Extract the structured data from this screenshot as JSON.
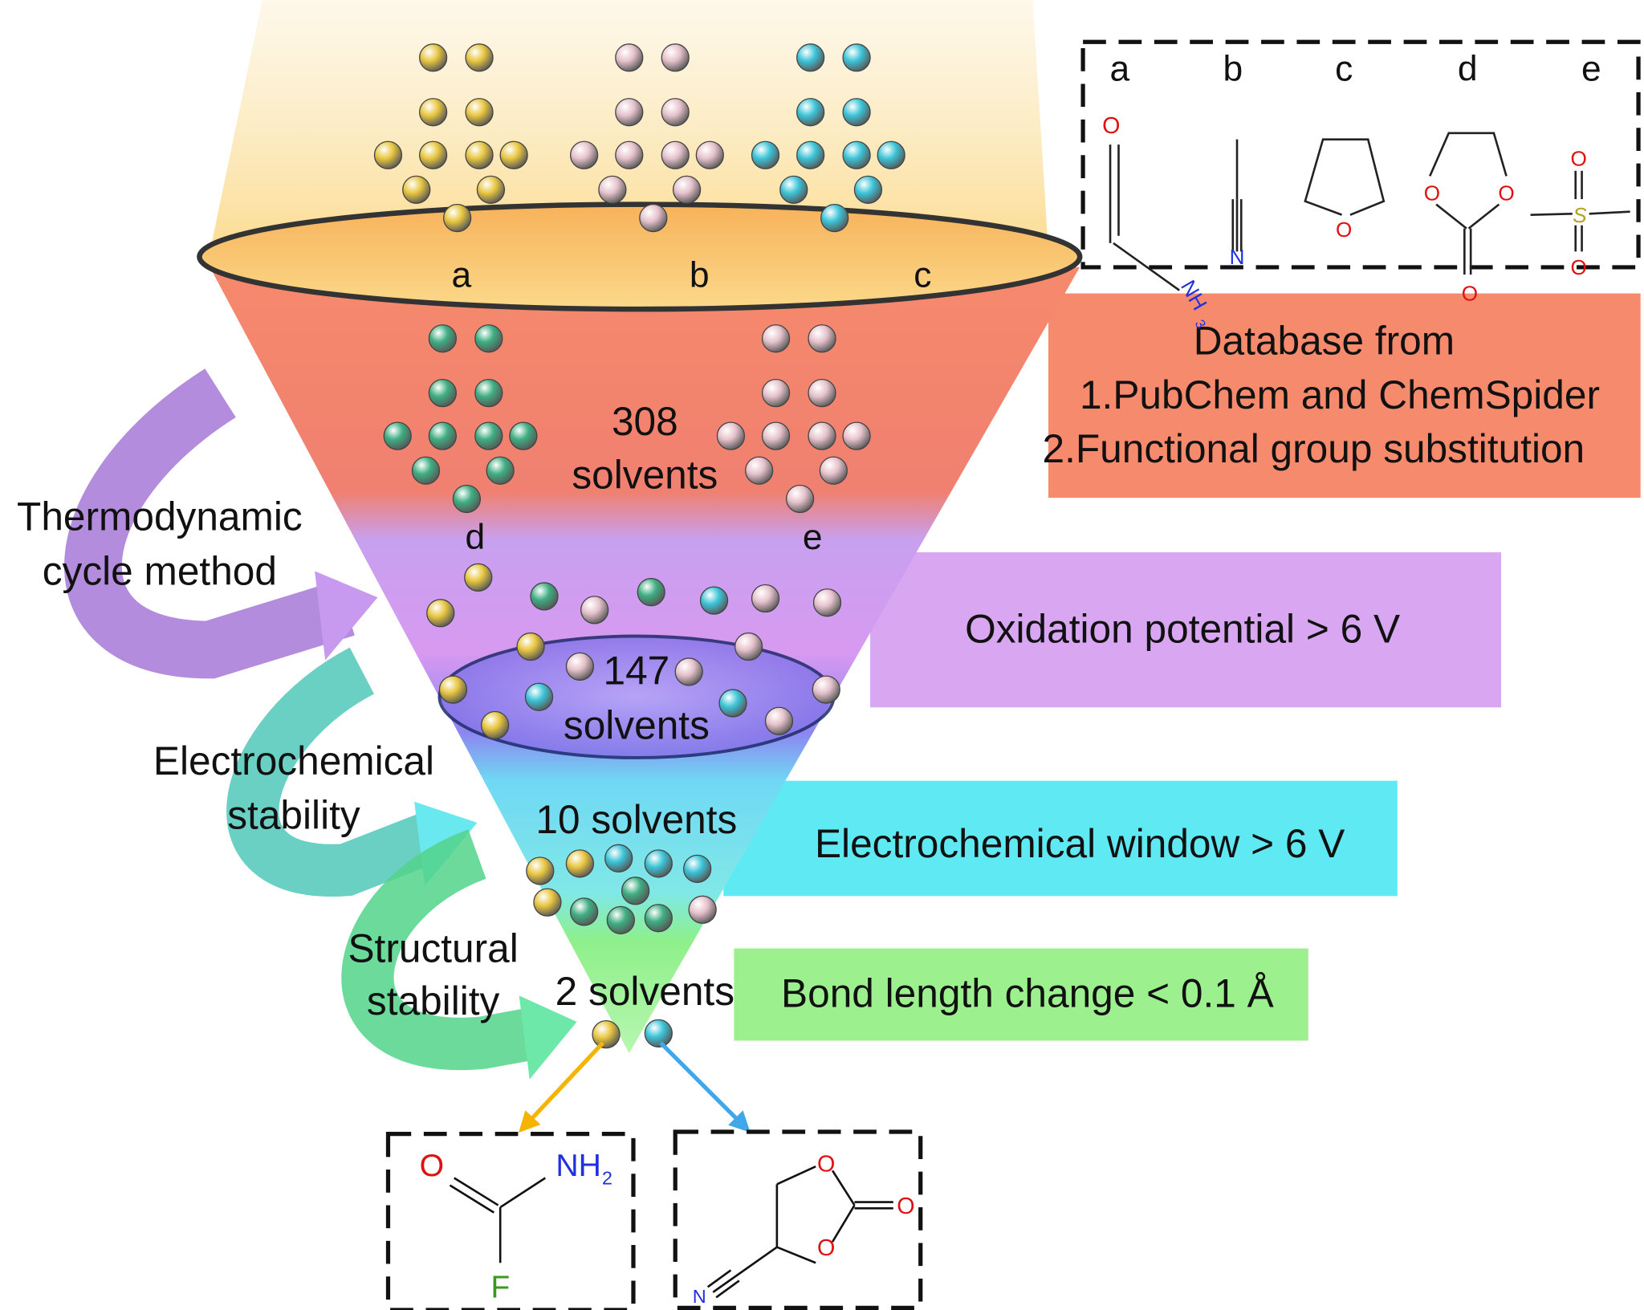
{
  "funnel": {
    "top_labels": [
      "a",
      "b",
      "c"
    ],
    "mid_labels": [
      "d",
      "e"
    ],
    "stage1": {
      "count": "308",
      "unit": "solvents"
    },
    "stage2": {
      "count": "147",
      "unit": "solvents"
    },
    "stage3": "10 solvents",
    "stage4": "2 solvents"
  },
  "criteria": {
    "database": [
      "Database from",
      "1.PubChem and ChemSpider",
      "2.Functional group substitution"
    ],
    "oxidation": "Oxidation potential > 6 V",
    "window": "Electrochemical window > 6 V",
    "bond": "Bond length change < 0.1 Å"
  },
  "methods": {
    "thermo": [
      "Thermodynamic",
      "cycle method"
    ],
    "electro": [
      "Electrochemical",
      "stability"
    ],
    "structural": [
      "Structural",
      "stability"
    ]
  },
  "legend": {
    "labels": [
      "a",
      "b",
      "c",
      "d",
      "e"
    ],
    "atoms": {
      "O": "O",
      "N": "N",
      "NH": "NH",
      "sub3": "3",
      "S": "S"
    }
  },
  "results": {
    "mol1": {
      "O": "O",
      "NH": "NH",
      "sub2": "2",
      "F": "F"
    },
    "mol2": {
      "O1": "O",
      "O2": "O",
      "O3": "O",
      "N": "N"
    }
  },
  "colors": {
    "yellow": "#e8c640",
    "pink": "#e6c2cc",
    "cyan": "#3cc4d8",
    "green": "#3fae82",
    "bar_orange": "#f68a6c",
    "bar_purple": "#d9a6f2",
    "bar_cyan": "#5fe9f3",
    "bar_green": "#9df08e",
    "arrow_purple": "#a678d8",
    "arrow_teal": "#4fc8b8",
    "arrow_green": "#52d48a",
    "arrow_orange": "#f5b400",
    "arrow_blue": "#40a8e8",
    "oxygen": "#e01010",
    "nitrogen": "#2030e0",
    "fluorine": "#3a9a20",
    "sulfur": "#b8a020"
  }
}
